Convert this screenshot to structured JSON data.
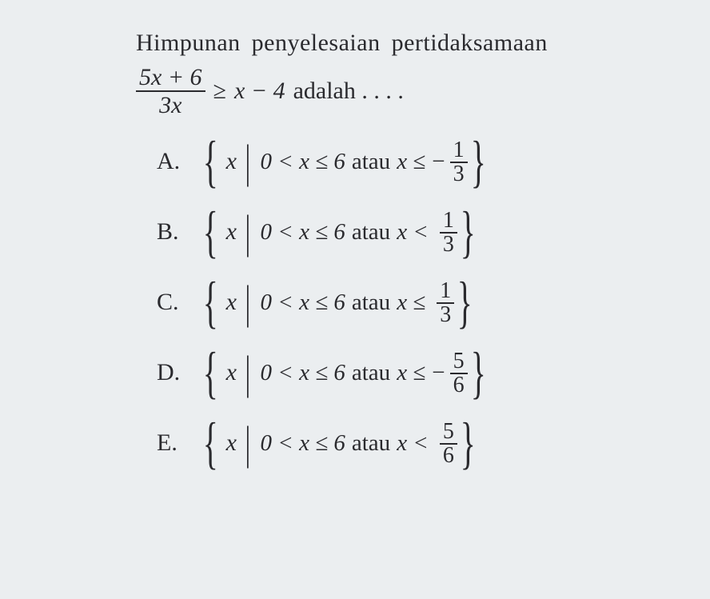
{
  "question": {
    "line1": "Himpunan penyelesaian pertidaksamaan",
    "frac_num": "5x + 6",
    "frac_den": "3x",
    "rel": "≥",
    "rhs": "x − 4",
    "tail": "adalah . . . ."
  },
  "common": {
    "xvar": "x",
    "range": "0 < x ≤ 6",
    "atau": "atau"
  },
  "options": [
    {
      "letter": "A.",
      "rel": "x ≤",
      "neg": "−",
      "num": "1",
      "den": "3"
    },
    {
      "letter": "B.",
      "rel": "x <",
      "neg": "",
      "num": "1",
      "den": "3"
    },
    {
      "letter": "C.",
      "rel": "x ≤",
      "neg": "",
      "num": "1",
      "den": "3"
    },
    {
      "letter": "D.",
      "rel": "x ≤",
      "neg": "−",
      "num": "5",
      "den": "6"
    },
    {
      "letter": "E.",
      "rel": "x <",
      "neg": "",
      "num": "5",
      "den": "6"
    }
  ],
  "colors": {
    "background": "#ebeef0",
    "text": "#2a2a2e"
  },
  "typography": {
    "font_family": "Times New Roman",
    "base_fontsize_pt": 22,
    "brace_fontsize_pt": 54
  }
}
